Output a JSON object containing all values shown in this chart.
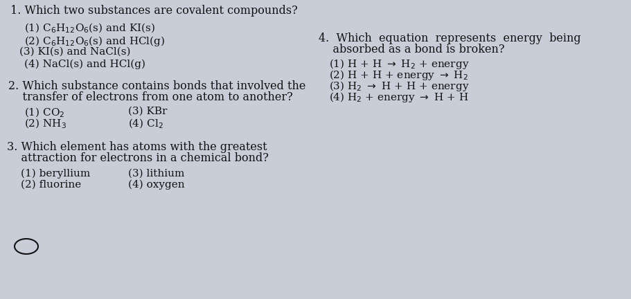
{
  "bg_color": "#c8cdd8",
  "text_color": "#111111",
  "fig_width": 9.12,
  "fig_height": 4.32,
  "dpi": 100,
  "fs_q": 11.5,
  "fs_a": 11.0,
  "q1_title": "1. Which two substances are covalent compounds?",
  "q1_a1": "(1) C$_6$H$_{12}$O$_6$(s) and KI(s)",
  "q1_a2": "(2) C$_6$H$_{12}$O$_6$(s) and HCl(g)",
  "q1_a3": "(3) KI(s) and NaCl(s)",
  "q1_a4": "(4) NaCl(s) and HCl(g)",
  "q2_line1": "2. Which substance contains bonds that involved the",
  "q2_line2": "    transfer of electrons from one atom to another?",
  "q2_a1": "(1) CO$_2$",
  "q2_a2": "(2) NH$_3$",
  "q2_a3": "(3) KBr",
  "q2_a4": "(4) Cl$_2$",
  "q3_line1": "3. Which element has atoms with the greatest",
  "q3_line2": "    attraction for electrons in a chemical bond?",
  "q3_a1": "(1) beryllium",
  "q3_a2": "(2) fluorine",
  "q3_a3": "(3) lithium",
  "q3_a4": "(4) oxygen",
  "q4_line1": "4.  Which  equation  represents  energy  being",
  "q4_line2": "    absorbed as a bond is broken?",
  "q4_a1": "(1) H + H $\\rightarrow$ H$_2$ + energy",
  "q4_a2": "(2) H + H + energy $\\rightarrow$ H$_2$",
  "q4_a3": "(3) H$_2$ $\\rightarrow$ H + H + energy",
  "q4_a4": "(4) H$_2$ + energy $\\rightarrow$ H + H"
}
